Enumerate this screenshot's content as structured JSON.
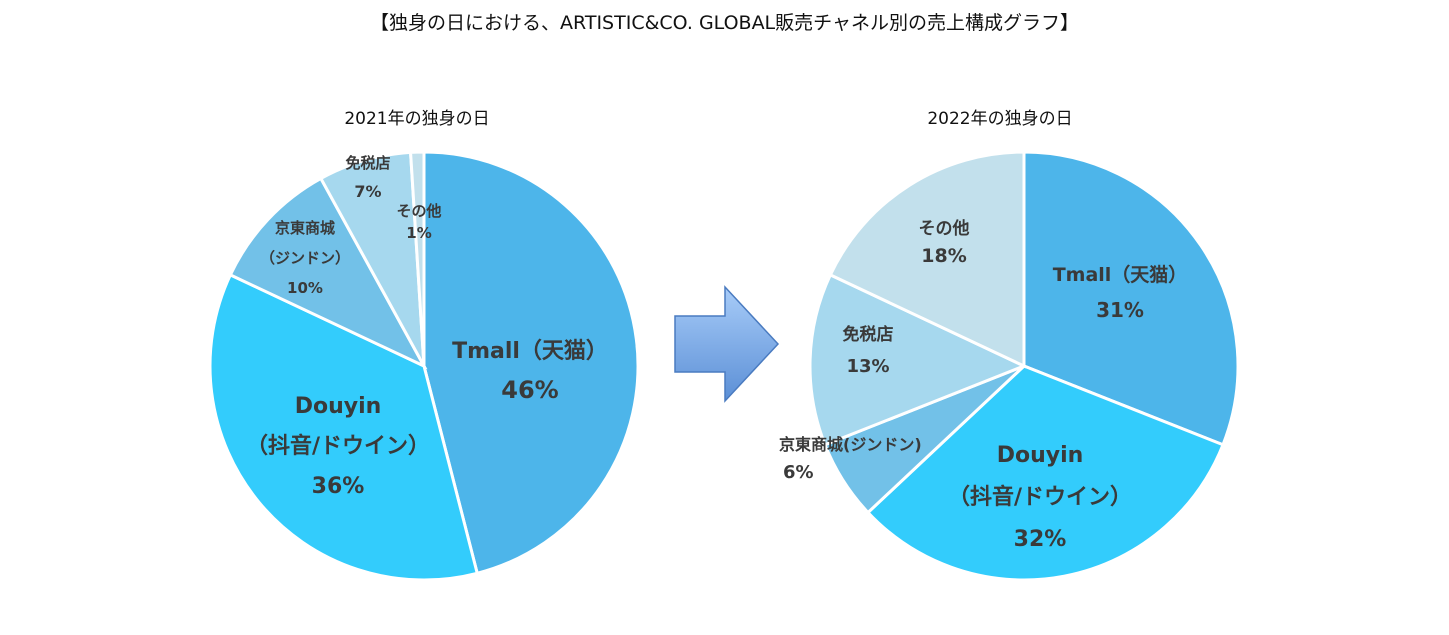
{
  "title": "【独身の日における、ARTISTIC&CO. GLOBAL販売チャネル別の売上構成グラフ】",
  "colors": {
    "tmall": "#4DB5EA",
    "douyin": "#33CCFC",
    "jd": "#72C1E8",
    "dutyfree": "#A6D8EE",
    "other": "#C2E0EC",
    "arrow_top": "#A8CCF8",
    "arrow_bottom": "#5B8FD6",
    "label": "#3a3a3a"
  },
  "chart_data": [
    {
      "type": "pie",
      "title": "2021年の独身の日",
      "start_angle_deg": 0,
      "direction": "clockwise",
      "slices": [
        {
          "key": "tmall",
          "lines": [
            "Tmall（天猫）",
            "46%"
          ],
          "value": 46
        },
        {
          "key": "douyin",
          "lines": [
            "Douyin",
            "（抖音/ドウイン）",
            "36%"
          ],
          "value": 36
        },
        {
          "key": "jd",
          "lines": [
            "京東商城",
            "（ジンドン）",
            "10%"
          ],
          "value": 10
        },
        {
          "key": "dutyfree",
          "lines": [
            "免税店",
            "7%"
          ],
          "value": 7
        },
        {
          "key": "other",
          "lines": [
            "その他",
            "1%"
          ],
          "value": 1
        }
      ]
    },
    {
      "type": "pie",
      "title": "2022年の独身の日",
      "start_angle_deg": 0,
      "direction": "clockwise",
      "slices": [
        {
          "key": "tmall",
          "lines": [
            "Tmall（天猫）",
            "31%"
          ],
          "value": 31
        },
        {
          "key": "douyin",
          "lines": [
            "Douyin",
            "（抖音/ドウイン）",
            "32%"
          ],
          "value": 32
        },
        {
          "key": "jd",
          "lines": [
            "京東商城(ジンドン)",
            "6%"
          ],
          "value": 6
        },
        {
          "key": "dutyfree",
          "lines": [
            "免税店",
            "13%"
          ],
          "value": 13
        },
        {
          "key": "other",
          "lines": [
            "その他",
            "18%"
          ],
          "value": 18
        }
      ]
    }
  ]
}
